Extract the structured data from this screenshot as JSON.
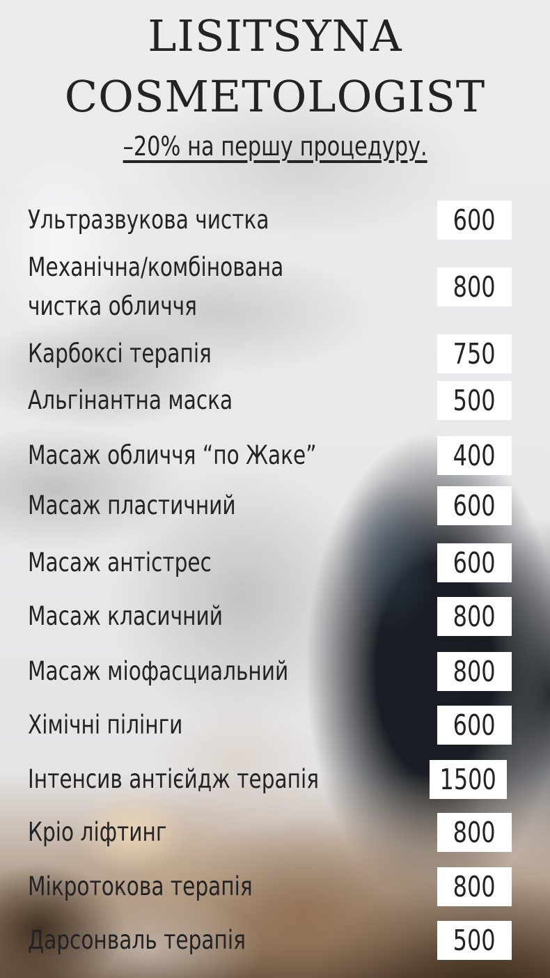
{
  "header": {
    "title_line1": "LISITSYNA",
    "title_line2": "COSMETOLOGIST",
    "promo": "–20% на першу процедуру."
  },
  "colors": {
    "text": "#232224",
    "price_box_bg": "#ffffff",
    "background_base": "#e9e9eb"
  },
  "services": [
    {
      "name": "Ультразвукова чистка",
      "price": "600"
    },
    {
      "name": "Механічна/комбінована\nчистка обличчя",
      "price": "800"
    },
    {
      "name": "Карбоксі терапія",
      "price": "750"
    },
    {
      "name": "Альгінантна маска",
      "price": "500"
    },
    {
      "name": "Масаж обличчя “по Жаке”",
      "price": "400"
    },
    {
      "name": "Масаж пластичний",
      "price": "600"
    },
    {
      "name": "Масаж антістрес",
      "price": "600"
    },
    {
      "name": "Масаж класичний",
      "price": "800"
    },
    {
      "name": "Масаж міофасциальний",
      "price": "800"
    },
    {
      "name": "Хімічні пілінги",
      "price": "600"
    },
    {
      "name": "Інтенсив антієйдж терапія",
      "price": "1500"
    },
    {
      "name": "Кріо ліфтинг",
      "price": "800"
    },
    {
      "name": "Мікротокова терапія",
      "price": "800"
    },
    {
      "name": "Дарсонваль терапія",
      "price": "500"
    }
  ]
}
